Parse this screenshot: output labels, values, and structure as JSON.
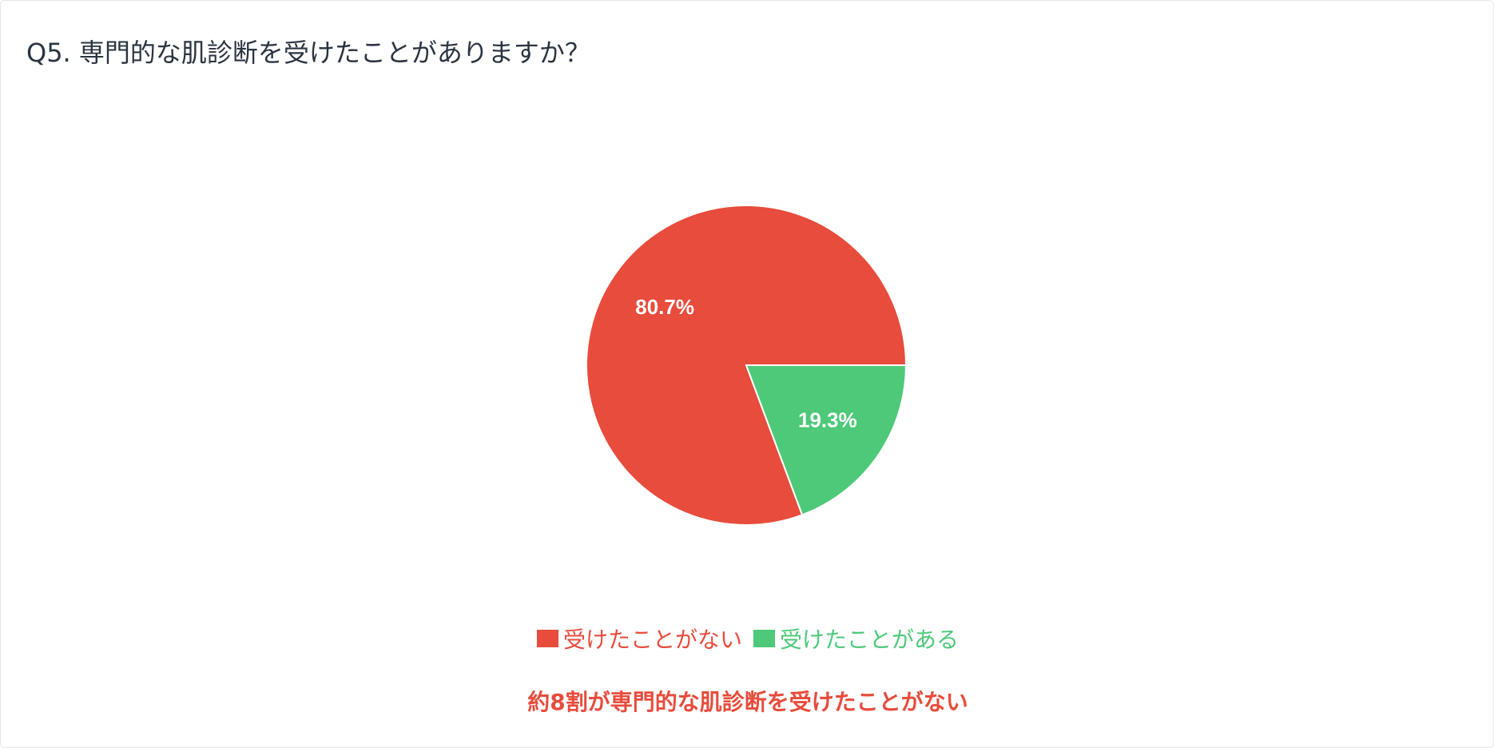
{
  "title": "Q5. 専門的な肌診断を受けたことがありますか？",
  "chart_data": {
    "type": "pie",
    "categories": [
      "受けたことがない",
      "受けたことがある"
    ],
    "values": [
      80.7,
      19.3
    ],
    "unit": "%",
    "data_labels": [
      "80.7%",
      "19.3%"
    ],
    "colors": [
      "#e74c3c",
      "#4ec97a"
    ],
    "legend_position": "bottom"
  },
  "caption": "約8割が専門的な肌診断を受けたことがない",
  "caption_color": "#e74c3c"
}
